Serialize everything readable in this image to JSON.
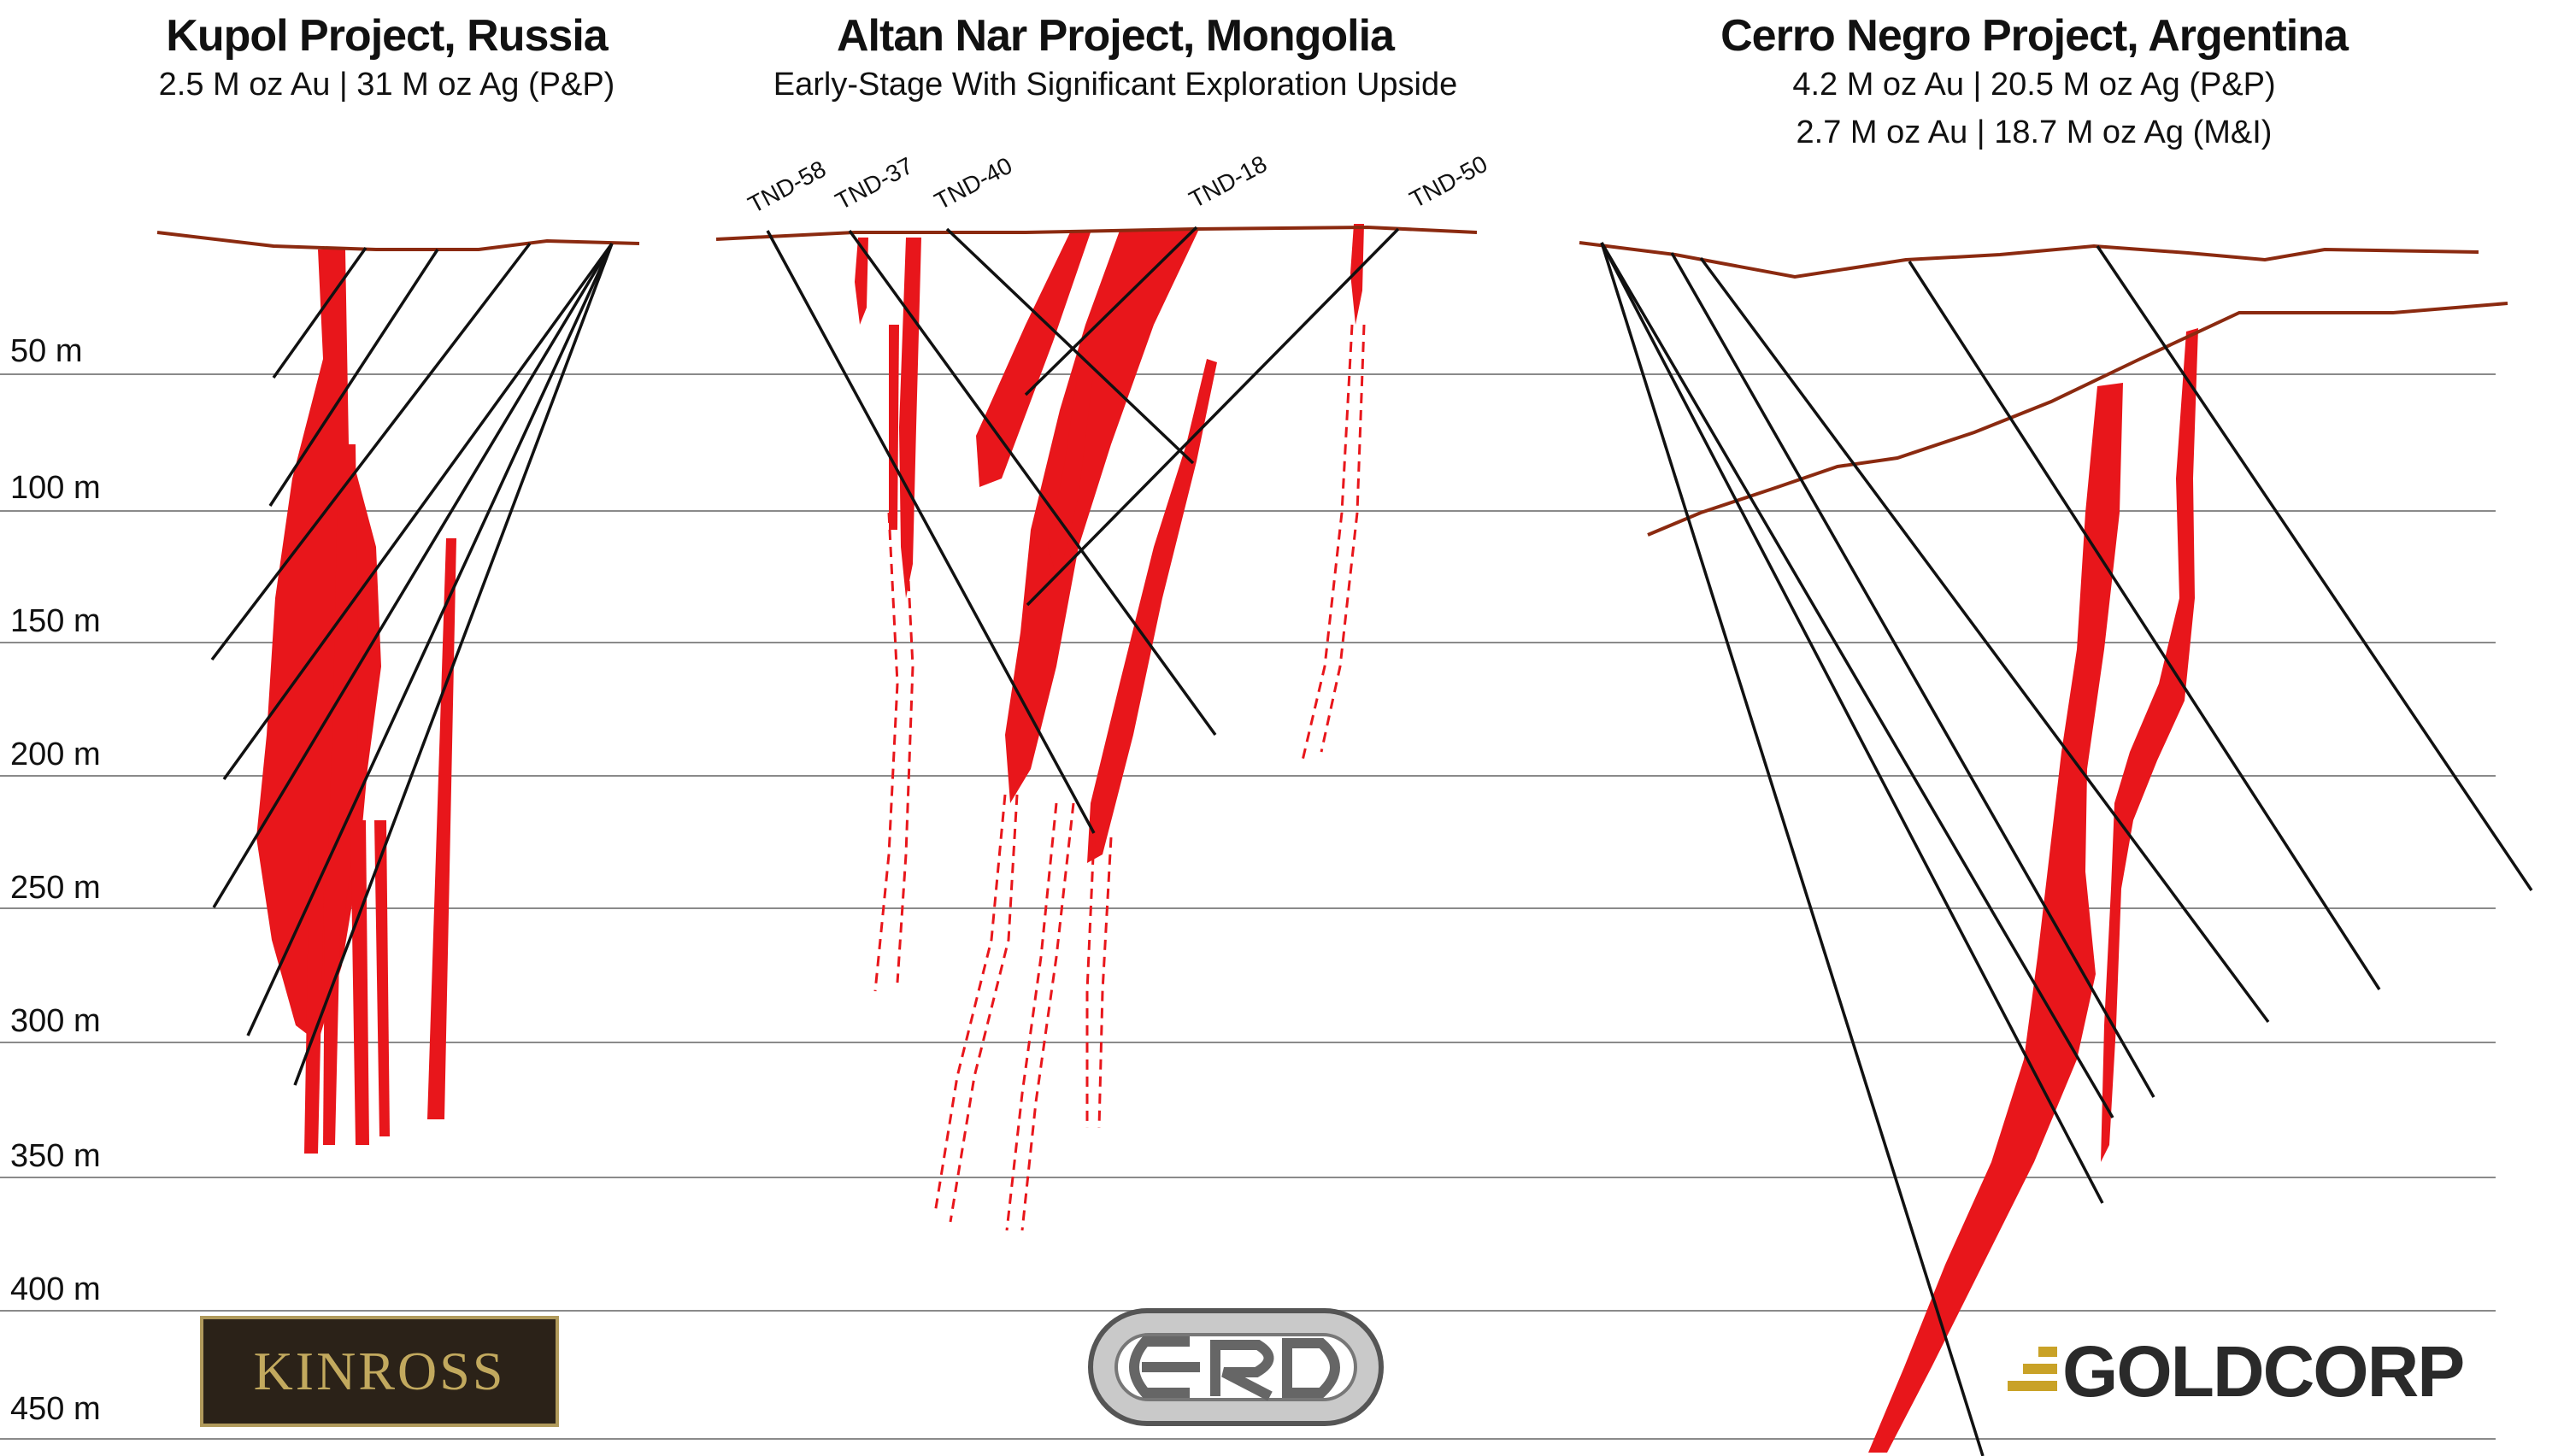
{
  "projects": [
    {
      "title": "Kupol Project, Russia",
      "lines": [
        "2.5 M oz Au  |  31 M oz Ag (P&P)"
      ]
    },
    {
      "title": "Altan Nar Project, Mongolia",
      "lines": [
        "Early-Stage With Significant Exploration Upside"
      ]
    },
    {
      "title": "Cerro Negro Project, Argentina",
      "lines": [
        "4.2 M oz Au  |  20.5 M oz Ag (P&P)",
        "2.7 M oz Au  |  18.7 M oz Ag (M&I)"
      ]
    }
  ],
  "depth_labels": [
    "50 m",
    "100 m",
    "150 m",
    "200 m",
    "250 m",
    "300 m",
    "350 m",
    "400 m",
    "450 m"
  ],
  "drill_holes": [
    "TND-58",
    "TND-37",
    "TND-40",
    "TND-18",
    "TND-50"
  ],
  "logos": {
    "left": "KINROSS",
    "right": "GOLDCORP"
  },
  "colors": {
    "vein": "#e8161b",
    "surface": "#8b2a10",
    "drill": "#111111",
    "grid": "#8a8a8a",
    "kinross_bg": "#2b2218",
    "kinross_text": "#c2a95e",
    "goldcorp_gold": "#c9a227"
  }
}
